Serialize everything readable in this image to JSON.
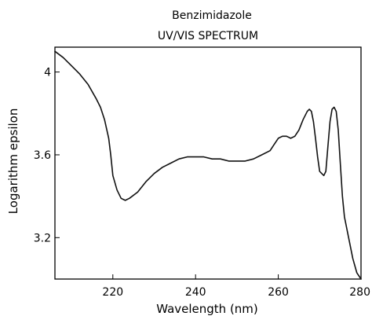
{
  "chart_data": {
    "type": "line",
    "title": "Benzimidazole",
    "subtitle": "UV/VIS SPECTRUM",
    "xlabel": "Wavelength (nm)",
    "ylabel": "Logarithm epsilon",
    "xlim": [
      206,
      280
    ],
    "ylim": [
      3.0,
      4.12
    ],
    "xticks": [
      220,
      240,
      260,
      280
    ],
    "yticks": [
      3.2,
      3.6,
      4.0
    ],
    "xtick_labels": [
      "220",
      "240",
      "260",
      "280"
    ],
    "ytick_labels": [
      "3.2",
      "3.6",
      "4"
    ],
    "grid": false,
    "series": [
      {
        "color": "#111111",
        "x": [
          206,
          208,
          210,
          212,
          214,
          216,
          217,
          218,
          219,
          219.5,
          220,
          221,
          222,
          223,
          224,
          226,
          228,
          230,
          232,
          234,
          236,
          238,
          240,
          242,
          244,
          246,
          248,
          250,
          252,
          254,
          256,
          258,
          259,
          260,
          261,
          262,
          263,
          264,
          265,
          266,
          267,
          267.5,
          268,
          268.5,
          269,
          269.5,
          270,
          270.5,
          271,
          271.5,
          272,
          272.5,
          273,
          273.5,
          274,
          274.5,
          275,
          275.5,
          276,
          277,
          278,
          279,
          280
        ],
        "y": [
          4.1,
          4.07,
          4.03,
          3.99,
          3.94,
          3.87,
          3.83,
          3.77,
          3.68,
          3.6,
          3.5,
          3.43,
          3.39,
          3.38,
          3.39,
          3.42,
          3.47,
          3.51,
          3.54,
          3.56,
          3.58,
          3.59,
          3.59,
          3.59,
          3.58,
          3.58,
          3.57,
          3.57,
          3.57,
          3.58,
          3.6,
          3.62,
          3.65,
          3.68,
          3.69,
          3.69,
          3.68,
          3.69,
          3.72,
          3.77,
          3.81,
          3.82,
          3.81,
          3.76,
          3.68,
          3.59,
          3.52,
          3.51,
          3.5,
          3.52,
          3.64,
          3.76,
          3.82,
          3.83,
          3.81,
          3.72,
          3.56,
          3.4,
          3.3,
          3.2,
          3.1,
          3.03,
          3.0
        ]
      }
    ]
  }
}
